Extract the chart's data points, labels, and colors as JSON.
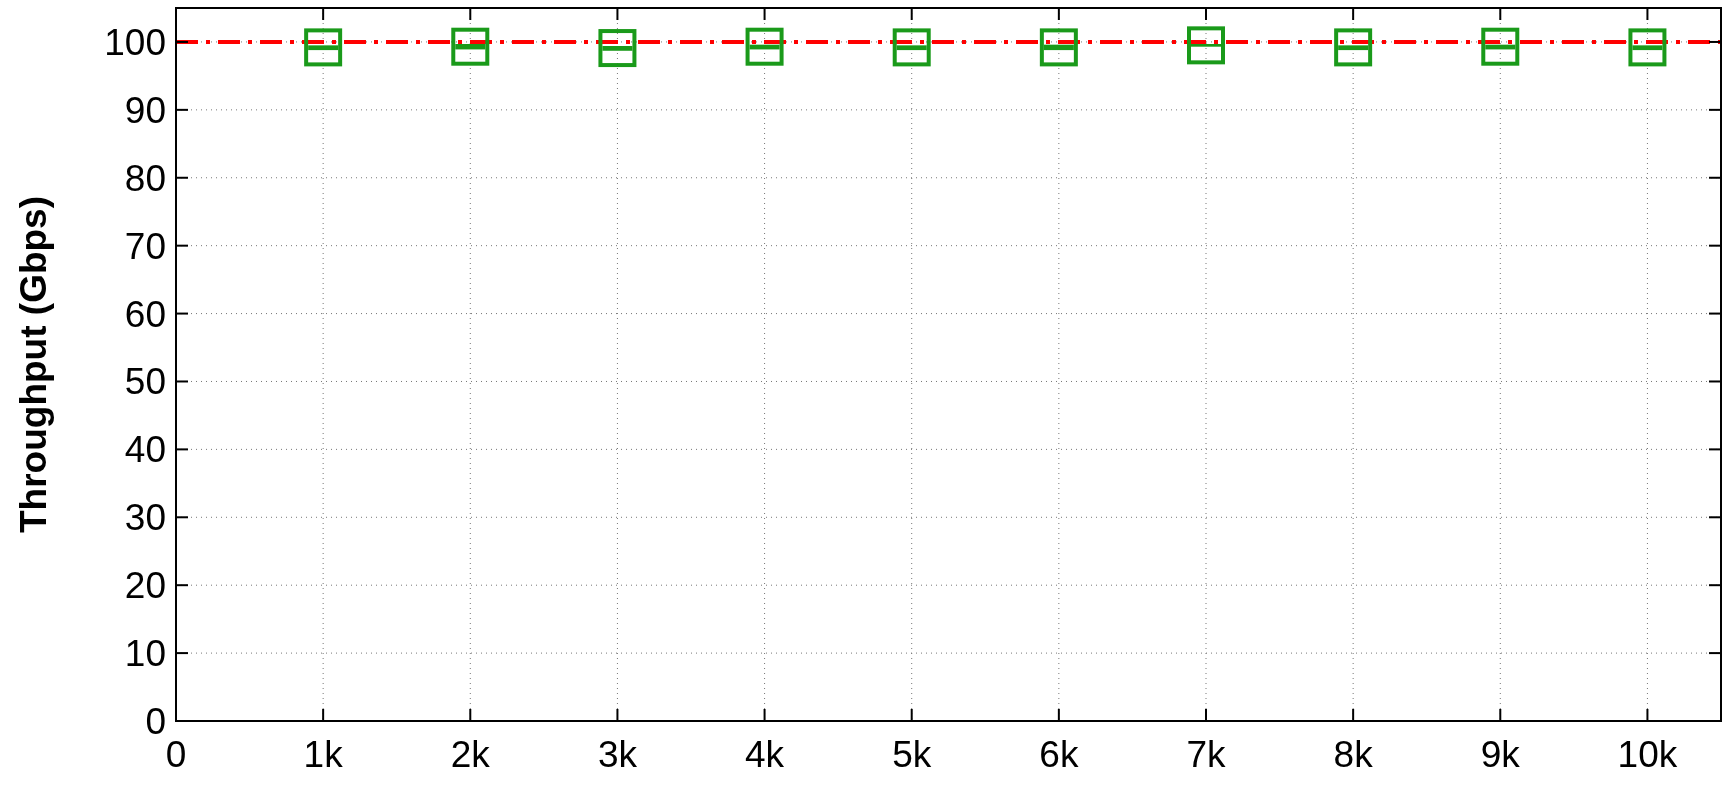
{
  "chart_data": {
    "type": "scatter",
    "ylabel": "Throughput (Gbps)",
    "x": [
      1000,
      2000,
      3000,
      4000,
      5000,
      6000,
      7000,
      8000,
      9000,
      10000
    ],
    "series": [
      {
        "color": "#1a9a1a",
        "values": [
          99.2,
          99.3,
          99.1,
          99.3,
          99.2,
          99.2,
          99.5,
          99.2,
          99.3,
          99.2
        ],
        "errors": [
          [
            98.8,
            99.5
          ],
          [
            98.9,
            99.7
          ],
          [
            98.7,
            99.4
          ],
          [
            98.9,
            99.6
          ],
          [
            98.8,
            99.5
          ],
          [
            98.8,
            99.6
          ],
          [
            99.3,
            99.7
          ],
          [
            98.8,
            99.5
          ],
          [
            98.9,
            99.6
          ],
          [
            98.8,
            99.5
          ]
        ]
      }
    ],
    "marker": "square",
    "xlim": [
      0,
      10500
    ],
    "xticks": [
      0,
      {
        "value": 1000,
        "label": "1k"
      },
      {
        "value": 2000,
        "label": "2k"
      },
      {
        "value": 3000,
        "label": "3k"
      },
      {
        "value": 4000,
        "label": "4k"
      },
      {
        "value": 5000,
        "label": "5k"
      },
      {
        "value": 6000,
        "label": "6k"
      },
      {
        "value": 7000,
        "label": "7k"
      },
      {
        "value": 8000,
        "label": "8k"
      },
      {
        "value": 9000,
        "label": "9k"
      },
      {
        "value": 10000,
        "label": "10k"
      }
    ],
    "ylim": [
      0,
      105
    ],
    "yticks": [
      0,
      10,
      20,
      30,
      40,
      50,
      60,
      70,
      80,
      90,
      100
    ],
    "grid": true,
    "ref_lines": [
      {
        "axis": "y",
        "value": 100,
        "color": "#ff0000",
        "line_style": "dashdot"
      }
    ]
  }
}
